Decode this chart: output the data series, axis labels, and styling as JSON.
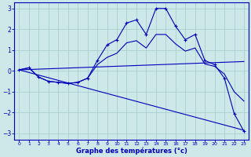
{
  "xlabel": "Graphe des températures (°c)",
  "background_color": "#cce8e8",
  "grid_color": "#aacece",
  "line_color": "#0000bb",
  "xlim": [
    -0.5,
    23.5
  ],
  "ylim": [
    -3.3,
    3.3
  ],
  "yticks": [
    -3,
    -2,
    -1,
    0,
    1,
    2,
    3
  ],
  "xticks": [
    0,
    1,
    2,
    3,
    4,
    5,
    6,
    7,
    8,
    9,
    10,
    11,
    12,
    13,
    14,
    15,
    16,
    17,
    18,
    19,
    20,
    21,
    22,
    23
  ],
  "curve1_x": [
    0,
    1,
    2,
    3,
    4,
    5,
    6,
    7,
    8,
    9,
    10,
    11,
    12,
    13,
    14,
    15,
    16,
    17,
    18,
    19,
    20,
    21,
    22,
    23
  ],
  "curve1_y": [
    0.05,
    0.15,
    -0.3,
    -0.5,
    -0.55,
    -0.6,
    -0.55,
    -0.35,
    0.5,
    1.25,
    1.5,
    2.3,
    2.45,
    1.75,
    3.0,
    3.0,
    2.15,
    1.5,
    1.75,
    0.5,
    0.3,
    -0.35,
    -2.05,
    -2.9
  ],
  "curve2_x": [
    0,
    1,
    2,
    3,
    4,
    5,
    6,
    7,
    8,
    9,
    10,
    11,
    12,
    13,
    14,
    15,
    16,
    17,
    18,
    19,
    20,
    21,
    22,
    23
  ],
  "curve2_y": [
    0.05,
    0.15,
    -0.3,
    -0.5,
    -0.55,
    -0.6,
    -0.55,
    -0.35,
    0.3,
    0.65,
    0.85,
    1.35,
    1.45,
    1.1,
    1.75,
    1.75,
    1.3,
    0.95,
    1.1,
    0.33,
    0.22,
    -0.15,
    -1.0,
    -1.45
  ],
  "curve3_x": [
    0,
    23
  ],
  "curve3_y": [
    0.05,
    0.45
  ],
  "curve4_x": [
    0,
    23
  ],
  "curve4_y": [
    0.05,
    -2.85
  ]
}
